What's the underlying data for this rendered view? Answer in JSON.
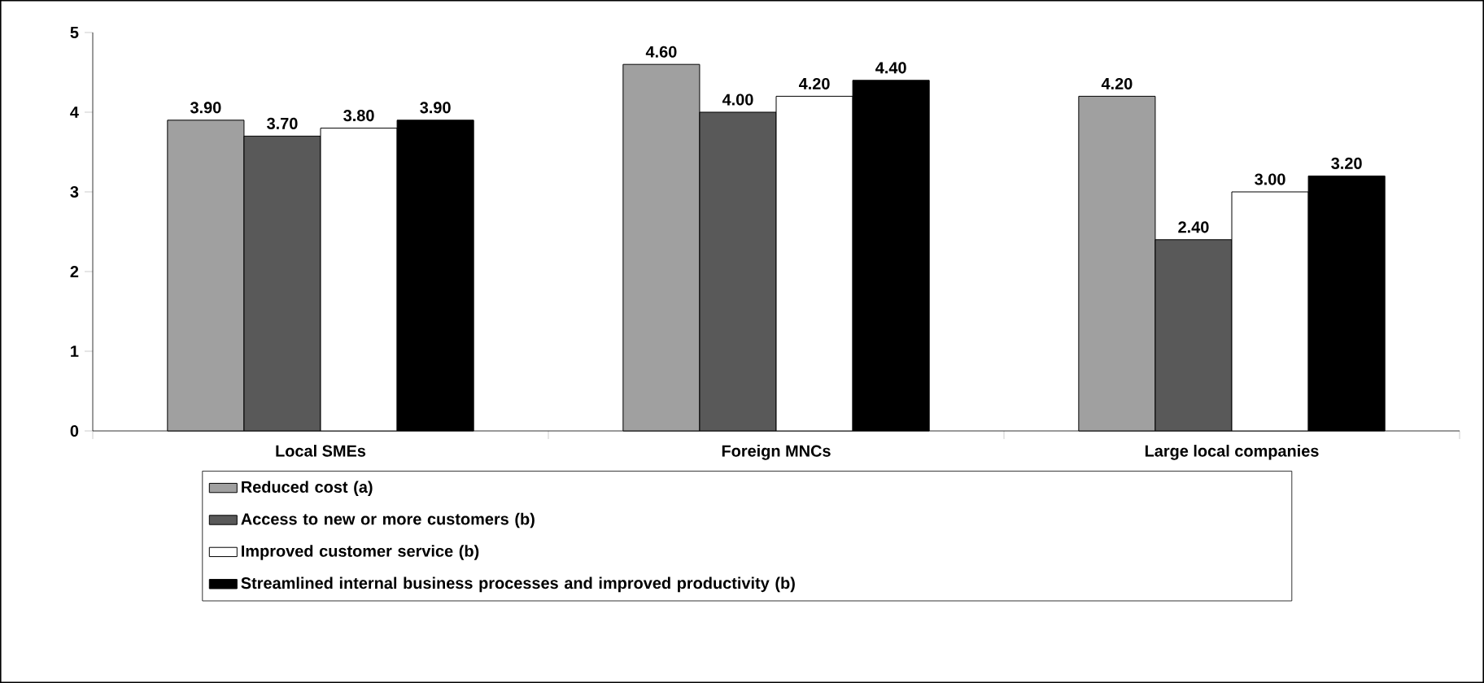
{
  "chart_data": {
    "type": "bar",
    "categories": [
      "Local SMEs",
      "Foreign MNCs",
      "Large local companies"
    ],
    "series": [
      {
        "name": "Reduced cost (a)",
        "color": "#a0a0a0",
        "values": [
          3.9,
          4.6,
          4.2
        ],
        "value_labels": [
          "3.90",
          "4.60",
          "4.20"
        ]
      },
      {
        "name": "Access to new or more customers (b)",
        "color": "#595959",
        "values": [
          3.7,
          4.0,
          2.4
        ],
        "value_labels": [
          "3.70",
          "4.00",
          "2.40"
        ]
      },
      {
        "name": "Improved customer service (b)",
        "color": "#ffffff",
        "values": [
          3.8,
          4.2,
          3.0
        ],
        "value_labels": [
          "3.80",
          "4.20",
          "3.00"
        ]
      },
      {
        "name": "Streamlined internal business processes and improved productivity (b)",
        "color": "#000000",
        "values": [
          3.9,
          4.4,
          3.2
        ],
        "value_labels": [
          "3.90",
          "4.40",
          "3.20"
        ]
      }
    ],
    "ylim": [
      0,
      5
    ],
    "yticks": [
      0,
      1,
      2,
      3,
      4,
      5
    ],
    "grid": false,
    "legend": "bottom"
  }
}
